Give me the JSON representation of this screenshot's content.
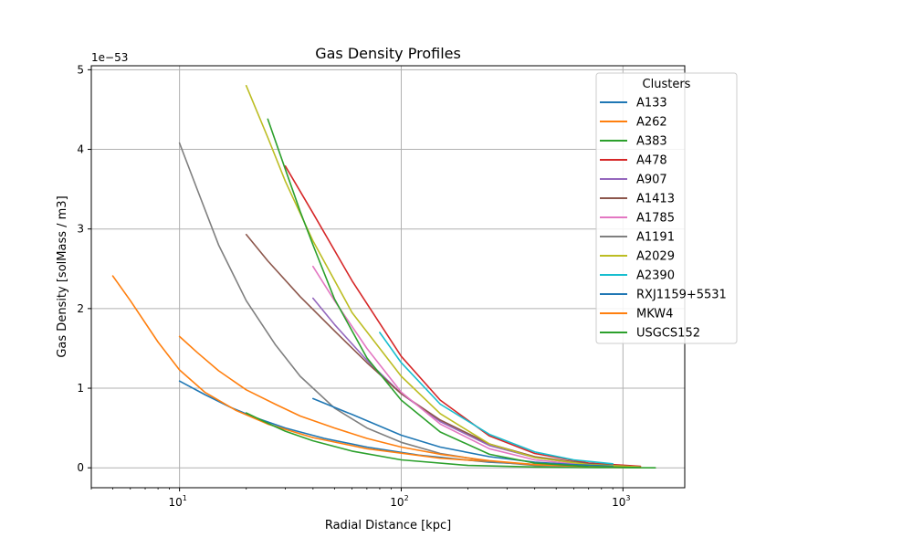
{
  "chart_data": {
    "type": "line",
    "title": "Gas Density Profiles",
    "xlabel": "Radial Distance [kpc]",
    "ylabel": "Gas Density [solMass / m3]",
    "y_offset_label": "1e−53",
    "x_scale": "log",
    "xlim": [
      4,
      1900
    ],
    "ylim": [
      -0.25,
      5.05
    ],
    "x_ticks": [
      {
        "value": 10,
        "base": "10",
        "exp": "1"
      },
      {
        "value": 100,
        "base": "10",
        "exp": "2"
      },
      {
        "value": 1000,
        "base": "10",
        "exp": "3"
      }
    ],
    "y_ticks": [
      0,
      1,
      2,
      3,
      4,
      5
    ],
    "y_tick_labels": [
      "0",
      "1",
      "2",
      "3",
      "4",
      "5"
    ],
    "grid": true,
    "legend": {
      "title": "Clusters",
      "position": "top-right"
    },
    "series": [
      {
        "name": "A133",
        "color": "#1f77b4",
        "x": [
          10,
          13,
          17,
          22,
          30,
          45,
          70,
          120,
          250,
          500,
          1000
        ],
        "y": [
          1.09,
          0.92,
          0.76,
          0.63,
          0.5,
          0.37,
          0.26,
          0.16,
          0.07,
          0.03,
          0.01
        ]
      },
      {
        "name": "A262",
        "color": "#ff7f0e",
        "x": [
          5,
          6,
          8,
          10,
          13,
          18,
          25,
          40,
          70,
          150,
          400,
          1000
        ],
        "y": [
          2.41,
          2.1,
          1.58,
          1.23,
          0.95,
          0.72,
          0.55,
          0.38,
          0.24,
          0.12,
          0.04,
          0.01
        ]
      },
      {
        "name": "A383",
        "color": "#2ca02c",
        "x": [
          20,
          25,
          30,
          40,
          60,
          100,
          200,
          400,
          800,
          1400
        ],
        "y": [
          0.69,
          0.56,
          0.46,
          0.34,
          0.21,
          0.1,
          0.03,
          0.01,
          0.002,
          0.0
        ]
      },
      {
        "name": "A478",
        "color": "#d62728",
        "x": [
          30,
          40,
          60,
          100,
          150,
          250,
          400,
          700,
          1200
        ],
        "y": [
          3.79,
          3.2,
          2.35,
          1.4,
          0.85,
          0.4,
          0.18,
          0.06,
          0.02
        ]
      },
      {
        "name": "A907",
        "color": "#9467bd",
        "x": [
          40,
          50,
          70,
          100,
          150,
          250,
          400,
          700,
          1200
        ],
        "y": [
          2.13,
          1.8,
          1.35,
          0.93,
          0.58,
          0.28,
          0.13,
          0.04,
          0.01
        ]
      },
      {
        "name": "A1413",
        "color": "#8c564b",
        "x": [
          20,
          25,
          35,
          50,
          70,
          100,
          150,
          250,
          400,
          700,
          1200
        ],
        "y": [
          2.93,
          2.6,
          2.15,
          1.72,
          1.32,
          0.93,
          0.6,
          0.3,
          0.14,
          0.05,
          0.01
        ]
      },
      {
        "name": "A1785",
        "color": "#e377c2",
        "x": [
          40,
          50,
          70,
          100,
          150,
          250,
          400,
          700,
          1200
        ],
        "y": [
          2.53,
          2.1,
          1.5,
          0.95,
          0.55,
          0.24,
          0.1,
          0.03,
          0.01
        ]
      },
      {
        "name": "A1191",
        "color": "#7f7f7f",
        "x": [
          10,
          12,
          15,
          20,
          27,
          35,
          50,
          70,
          100,
          150,
          250,
          400,
          1000
        ],
        "y": [
          4.08,
          3.5,
          2.8,
          2.1,
          1.55,
          1.15,
          0.75,
          0.5,
          0.32,
          0.18,
          0.08,
          0.03,
          0.005
        ]
      },
      {
        "name": "A2029",
        "color": "#bcbd22",
        "x": [
          20,
          25,
          30,
          40,
          60,
          100,
          150,
          250,
          400,
          700,
          1200
        ],
        "y": [
          4.8,
          4.15,
          3.6,
          2.85,
          1.95,
          1.15,
          0.68,
          0.3,
          0.13,
          0.04,
          0.01
        ]
      },
      {
        "name": "A2390",
        "color": "#17becf",
        "x": [
          80,
          100,
          150,
          250,
          400,
          600,
          900
        ],
        "y": [
          1.7,
          1.32,
          0.8,
          0.42,
          0.2,
          0.1,
          0.05
        ]
      },
      {
        "name": "RXJ1159+5531",
        "color": "#1f77b4",
        "x": [
          40,
          60,
          100,
          150,
          250,
          400,
          600,
          900
        ],
        "y": [
          0.87,
          0.67,
          0.41,
          0.26,
          0.14,
          0.07,
          0.04,
          0.02
        ]
      },
      {
        "name": "MKW4",
        "color": "#ff7f0e",
        "x": [
          10,
          12,
          15,
          20,
          27,
          35,
          50,
          70,
          100,
          150,
          250,
          400,
          700,
          1200
        ],
        "y": [
          1.65,
          1.45,
          1.22,
          0.98,
          0.8,
          0.65,
          0.5,
          0.37,
          0.26,
          0.17,
          0.09,
          0.04,
          0.015,
          0.005
        ]
      },
      {
        "name": "USGCS152",
        "color": "#2ca02c",
        "x": [
          25,
          30,
          35,
          40,
          50,
          70,
          100,
          150,
          250,
          400,
          700,
          1200
        ],
        "y": [
          4.38,
          3.75,
          3.22,
          2.8,
          2.12,
          1.38,
          0.85,
          0.45,
          0.17,
          0.06,
          0.015,
          0.003
        ]
      }
    ]
  }
}
